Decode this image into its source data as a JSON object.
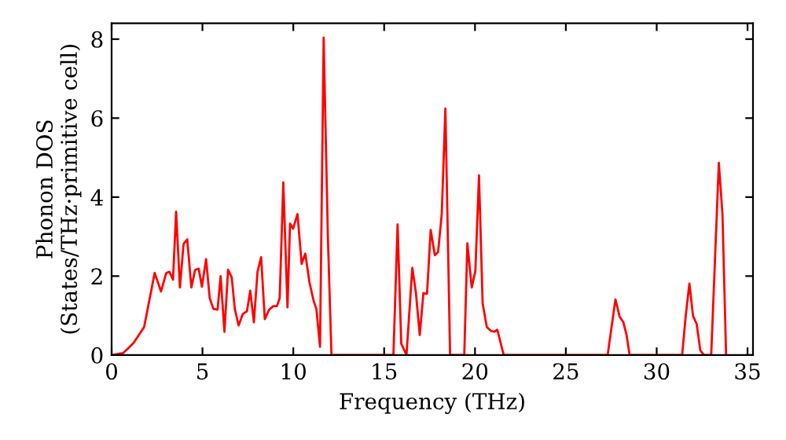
{
  "chart_data": {
    "type": "line",
    "xlabel": "Frequency (THz)",
    "ylabel": "Phonon DOS\n(States/THz·primitive cell)",
    "xlim": [
      0,
      35.3
    ],
    "ylim": [
      0,
      8.4
    ],
    "xticks": [
      0,
      5,
      10,
      15,
      20,
      25,
      30,
      35
    ],
    "yticks": [
      0,
      2,
      4,
      6,
      8
    ],
    "grid": false,
    "legend": false,
    "marker": "none",
    "line_style": "solid",
    "series": [
      {
        "color": "#ff0000",
        "x": [
          0,
          0.63,
          1.2,
          1.79,
          2.37,
          2.72,
          3.0,
          3.18,
          3.38,
          3.55,
          3.76,
          3.96,
          4.16,
          4.39,
          4.59,
          4.79,
          4.97,
          5.2,
          5.4,
          5.6,
          5.83,
          6.0,
          6.21,
          6.41,
          6.61,
          6.78,
          6.99,
          7.22,
          7.45,
          7.63,
          7.83,
          8.03,
          8.23,
          8.43,
          8.67,
          8.9,
          9.1,
          9.25,
          9.45,
          9.68,
          9.82,
          9.99,
          10.23,
          10.46,
          10.66,
          10.89,
          11.12,
          11.27,
          11.47,
          11.67,
          11.9,
          12.1,
          15.51,
          15.74,
          15.94,
          16.23,
          16.55,
          16.75,
          16.96,
          17.16,
          17.36,
          17.56,
          17.79,
          17.97,
          18.17,
          18.37,
          18.63,
          19.41,
          19.58,
          19.82,
          20.02,
          20.22,
          20.42,
          20.65,
          20.88,
          21.06,
          21.23,
          21.58,
          27.3,
          27.73,
          27.96,
          28.16,
          28.34,
          28.51,
          31.4,
          31.6,
          31.8,
          32.0,
          32.2,
          32.4,
          32.6,
          33.0,
          33.42,
          33.62,
          33.82
        ],
        "values": [
          0,
          0.05,
          0.3,
          0.71,
          2.08,
          1.61,
          2.07,
          2.11,
          1.91,
          3.63,
          1.71,
          2.81,
          2.93,
          1.71,
          2.15,
          2.19,
          1.73,
          2.43,
          1.44,
          1.17,
          1.15,
          2.0,
          0.59,
          2.16,
          1.97,
          1.17,
          0.75,
          1.04,
          1.11,
          1.63,
          0.83,
          2.11,
          2.48,
          0.91,
          1.15,
          1.24,
          1.24,
          1.44,
          4.37,
          1.21,
          3.33,
          3.2,
          3.57,
          2.31,
          2.57,
          1.84,
          1.37,
          1.17,
          0.21,
          8.04,
          3.04,
          0,
          0,
          3.31,
          0.29,
          0,
          2.21,
          1.57,
          0.51,
          1.57,
          1.55,
          3.17,
          2.53,
          2.61,
          3.57,
          6.24,
          0,
          0,
          2.83,
          1.71,
          2.13,
          4.55,
          1.31,
          0.71,
          0.61,
          0.59,
          0.64,
          0,
          0,
          1.41,
          0.97,
          0.84,
          0.51,
          0,
          0,
          1.0,
          1.81,
          0.99,
          0.79,
          0.12,
          0,
          0,
          4.87,
          3.57,
          0
        ]
      }
    ]
  }
}
